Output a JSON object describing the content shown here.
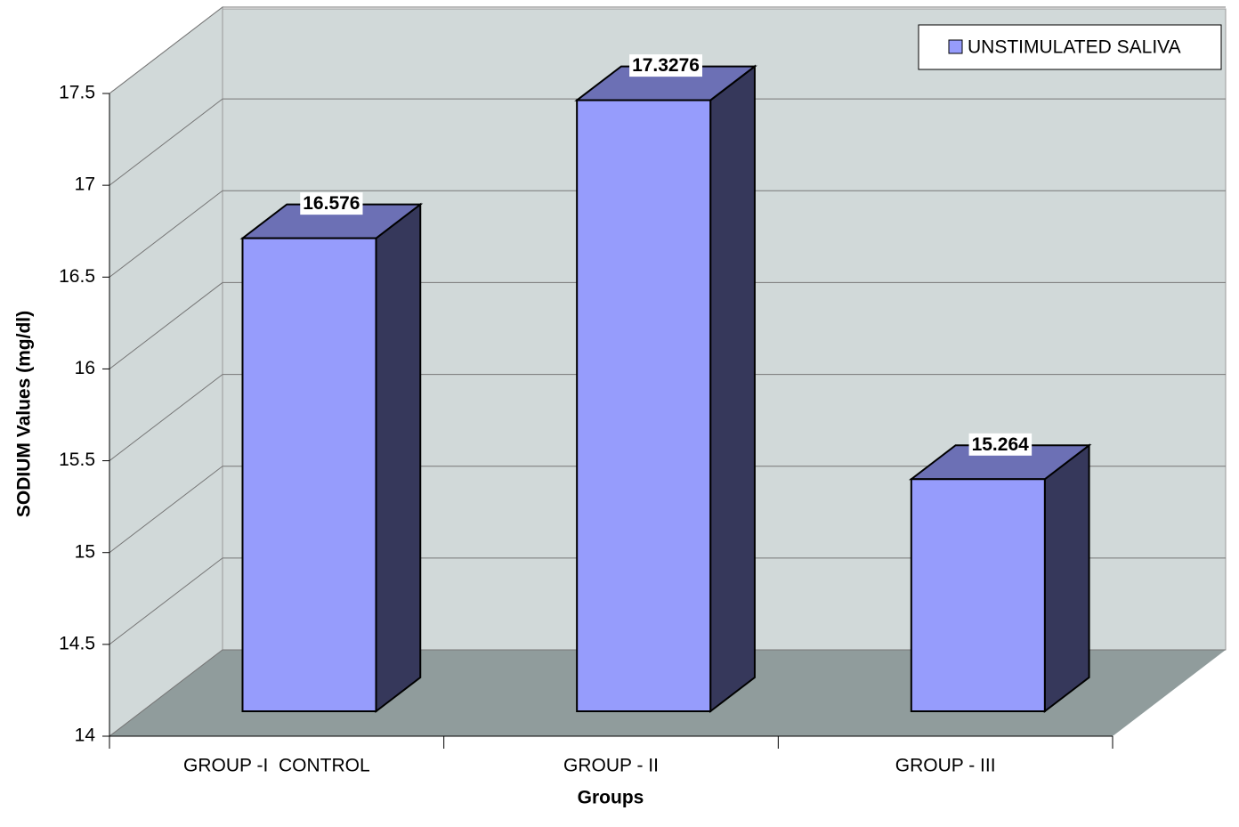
{
  "chart_data": {
    "type": "bar3d",
    "x_label": "Groups",
    "y_label": "SODIUM Values (mg/dl)",
    "categories": [
      "GROUP -I  CONTROL",
      "GROUP - II",
      "GROUP - III"
    ],
    "series": [
      {
        "name": "UNSTIMULATED SALIVA",
        "color": "#969cfc",
        "values": [
          16.576,
          17.3276,
          15.264
        ]
      }
    ],
    "ylim": [
      14,
      17.5
    ],
    "yticks": [
      14,
      14.5,
      15,
      15.5,
      16,
      16.5,
      17,
      17.5
    ],
    "grid": true,
    "legend": "top-right"
  }
}
